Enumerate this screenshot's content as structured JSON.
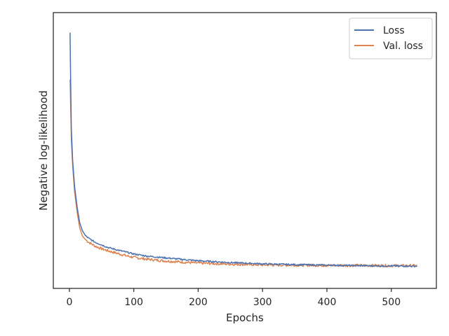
{
  "chart_data": {
    "type": "line",
    "title": "",
    "xlabel": "Epochs",
    "ylabel": "Negative log-likelihood",
    "xlim": [
      -25,
      570
    ],
    "ylim": [
      0.0,
      1.0
    ],
    "y_tick_labels_shown": false,
    "x_ticks": [
      0,
      100,
      200,
      300,
      400,
      500
    ],
    "grid": false,
    "legend": {
      "position": "top-right"
    },
    "series": [
      {
        "name": "Loss",
        "color": "#4c72b0",
        "x": [
          1,
          2,
          3,
          5,
          8,
          12,
          16,
          20,
          25,
          30,
          40,
          50,
          60,
          75,
          90,
          100,
          120,
          150,
          180,
          200,
          250,
          300,
          350,
          400,
          450,
          500,
          540
        ],
        "y": [
          0.95,
          0.75,
          0.58,
          0.46,
          0.36,
          0.28,
          0.22,
          0.19,
          0.17,
          0.16,
          0.145,
          0.135,
          0.125,
          0.115,
          0.106,
          0.1,
          0.092,
          0.085,
          0.078,
          0.074,
          0.067,
          0.062,
          0.059,
          0.057,
          0.055,
          0.054,
          0.053
        ]
      },
      {
        "name": "Val. loss",
        "color": "#dd8452",
        "x": [
          1,
          2,
          3,
          5,
          8,
          12,
          16,
          20,
          25,
          30,
          40,
          50,
          60,
          75,
          90,
          100,
          120,
          150,
          180,
          200,
          250,
          300,
          350,
          400,
          450,
          500,
          540
        ],
        "y": [
          0.77,
          0.66,
          0.54,
          0.44,
          0.34,
          0.26,
          0.2,
          0.17,
          0.155,
          0.145,
          0.13,
          0.12,
          0.112,
          0.102,
          0.092,
          0.087,
          0.08,
          0.073,
          0.068,
          0.065,
          0.061,
          0.058,
          0.057,
          0.056,
          0.056,
          0.055,
          0.055
        ]
      }
    ]
  }
}
